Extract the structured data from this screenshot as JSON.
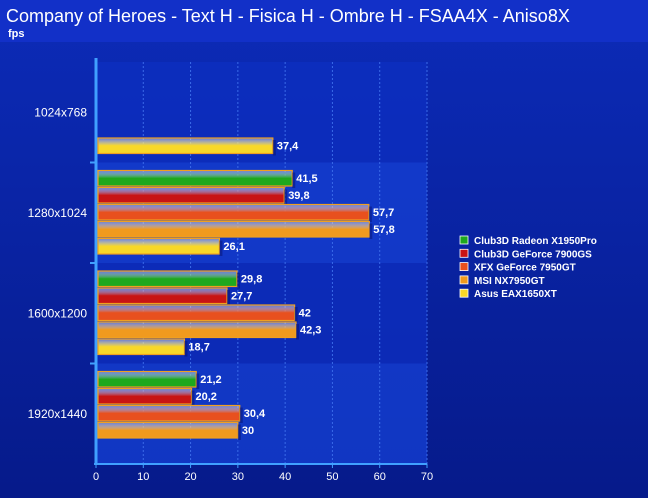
{
  "chart_data": {
    "type": "bar",
    "orientation": "horizontal",
    "title": "Company of Heroes - Text H - Fisica H - Ombre H - FSAA4X - Aniso8X",
    "ylabel": "fps",
    "xlim": [
      0,
      70
    ],
    "xticks": [
      0,
      10,
      20,
      30,
      40,
      50,
      60,
      70
    ],
    "grid": "vertical",
    "legend_position": "right",
    "categories": [
      "1024x768",
      "1280x1024",
      "1600x1200",
      "1920x1440"
    ],
    "series": [
      {
        "name": "Club3D Radeon X1950Pro",
        "color": "#1ea81e",
        "values": [
          null,
          41.5,
          29.8,
          21.2
        ],
        "labels": [
          "",
          "41,5",
          "29,8",
          "21,2"
        ]
      },
      {
        "name": "Club3D GeForce 7900GS",
        "color": "#c81414",
        "values": [
          null,
          39.8,
          27.7,
          20.2
        ],
        "labels": [
          "",
          "39,8",
          "27,7",
          "20,2"
        ]
      },
      {
        "name": "XFX GeForce 7950GT",
        "color": "#e8501e",
        "values": [
          null,
          57.7,
          42,
          30.4
        ],
        "labels": [
          "",
          "57,7",
          "42",
          "30,4"
        ]
      },
      {
        "name": "MSI NX7950GT",
        "color": "#f09a1e",
        "values": [
          null,
          57.8,
          42.3,
          30
        ],
        "labels": [
          "",
          "57,8",
          "42,3",
          "30"
        ]
      },
      {
        "name": "Asus EAX1650XT",
        "color": "#f8d828",
        "values": [
          37.4,
          26.1,
          18.7,
          null
        ],
        "labels": [
          "37,4",
          "26,1",
          "18,7",
          ""
        ]
      }
    ]
  }
}
